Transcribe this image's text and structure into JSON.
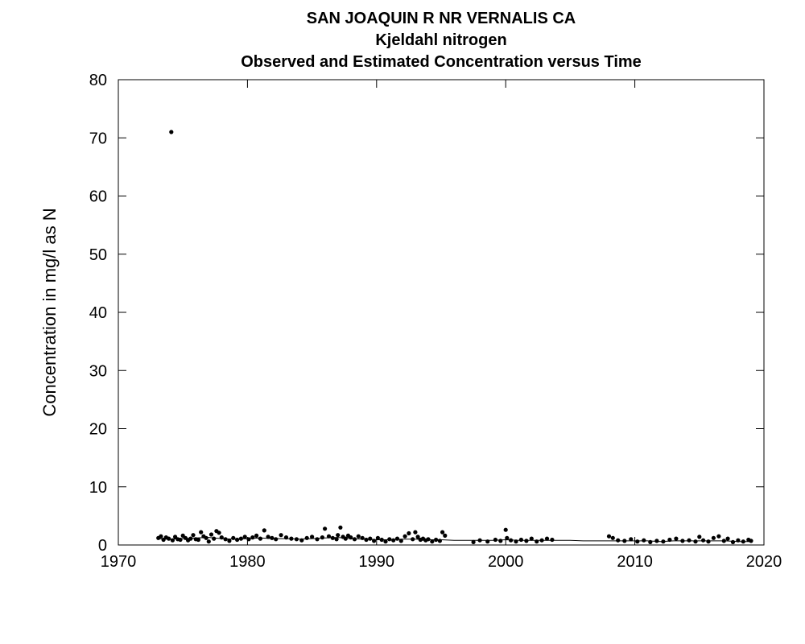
{
  "chart_data": {
    "type": "scatter",
    "title": "SAN JOAQUIN R NR VERNALIS CA",
    "subtitle": "Kjeldahl nitrogen",
    "subtitle2": "Observed and Estimated Concentration versus Time",
    "xlabel": "",
    "ylabel": "Concentration in mg/l as N",
    "xlim": [
      1970,
      2020
    ],
    "ylim": [
      0,
      80
    ],
    "x_ticks": [
      1970,
      1980,
      1990,
      2000,
      2010,
      2020
    ],
    "y_ticks": [
      0,
      10,
      20,
      30,
      40,
      50,
      60,
      70,
      80
    ],
    "grid": false,
    "series": [
      {
        "kind": "observed",
        "style": "points",
        "x": [
          1973.1,
          1973.3,
          1973.5,
          1973.7,
          1973.9,
          1974.1,
          1974.2,
          1974.4,
          1974.6,
          1974.8,
          1975.0,
          1975.2,
          1975.4,
          1975.6,
          1975.8,
          1976.0,
          1976.2,
          1976.4,
          1976.6,
          1976.8,
          1977.0,
          1977.2,
          1977.4,
          1977.6,
          1977.8,
          1978.0,
          1978.3,
          1978.6,
          1978.9,
          1979.2,
          1979.5,
          1979.8,
          1980.1,
          1980.4,
          1980.7,
          1981.0,
          1981.3,
          1981.6,
          1981.9,
          1982.2,
          1982.6,
          1983.0,
          1983.4,
          1983.8,
          1984.2,
          1984.6,
          1985.0,
          1985.4,
          1985.8,
          1986.0,
          1986.3,
          1986.6,
          1986.9,
          1987.0,
          1987.2,
          1987.4,
          1987.6,
          1987.8,
          1988.0,
          1988.3,
          1988.6,
          1988.9,
          1989.2,
          1989.5,
          1989.8,
          1990.1,
          1990.4,
          1990.7,
          1991.0,
          1991.3,
          1991.6,
          1991.9,
          1992.2,
          1992.5,
          1992.8,
          1993.0,
          1993.2,
          1993.4,
          1993.6,
          1993.8,
          1994.0,
          1994.3,
          1994.6,
          1994.9,
          1995.1,
          1995.3,
          1997.5,
          1998.0,
          1998.6,
          1999.2,
          1999.6,
          2000.0,
          2000.1,
          2000.4,
          2000.8,
          2001.2,
          2001.6,
          2002.0,
          2002.4,
          2002.8,
          2003.2,
          2003.6,
          2008.0,
          2008.3,
          2008.7,
          2009.2,
          2009.7,
          2010.2,
          2010.7,
          2011.2,
          2011.7,
          2012.2,
          2012.7,
          2013.2,
          2013.7,
          2014.2,
          2014.7,
          2015.0,
          2015.3,
          2015.7,
          2016.1,
          2016.5,
          2016.9,
          2017.2,
          2017.6,
          2018.0,
          2018.4,
          2018.8,
          2019.0
        ],
        "y": [
          1.2,
          1.5,
          0.9,
          1.3,
          1.1,
          71.0,
          0.8,
          1.4,
          1.0,
          0.9,
          1.6,
          1.2,
          0.8,
          1.1,
          1.7,
          1.0,
          0.9,
          2.2,
          1.5,
          1.2,
          0.6,
          1.8,
          1.1,
          2.4,
          2.1,
          1.3,
          1.0,
          0.7,
          1.2,
          0.9,
          1.1,
          1.4,
          1.0,
          1.3,
          1.6,
          1.1,
          2.5,
          1.4,
          1.2,
          1.0,
          1.7,
          1.3,
          1.1,
          1.0,
          0.8,
          1.2,
          1.4,
          1.0,
          1.3,
          2.8,
          1.5,
          1.2,
          1.0,
          1.7,
          3.0,
          1.4,
          1.1,
          1.6,
          1.3,
          1.0,
          1.5,
          1.2,
          0.9,
          1.1,
          0.7,
          1.2,
          0.9,
          0.6,
          1.0,
          0.8,
          1.1,
          0.7,
          1.5,
          2.0,
          1.0,
          2.2,
          1.4,
          0.9,
          1.1,
          0.8,
          1.0,
          0.6,
          0.9,
          0.7,
          2.2,
          1.6,
          0.5,
          0.8,
          0.6,
          0.9,
          0.7,
          2.6,
          1.2,
          0.8,
          0.6,
          0.9,
          0.7,
          1.1,
          0.6,
          0.8,
          1.1,
          0.9,
          1.5,
          1.2,
          0.8,
          0.7,
          1.0,
          0.6,
          0.8,
          0.5,
          0.7,
          0.6,
          0.9,
          1.1,
          0.7,
          0.8,
          0.6,
          1.4,
          0.8,
          0.6,
          1.2,
          1.5,
          0.7,
          1.1,
          0.5,
          0.8,
          0.6,
          0.9,
          0.7
        ]
      },
      {
        "kind": "estimated",
        "style": "line",
        "x": [
          1973,
          1974,
          1975,
          1976,
          1977,
          1978,
          1979,
          1980,
          1981,
          1982,
          1983,
          1984,
          1985,
          1986,
          1987,
          1988,
          1989,
          1990,
          1991,
          1992,
          1993,
          1994,
          1995,
          1996,
          1997,
          1998,
          1999,
          2000,
          2001,
          2002,
          2003,
          2004,
          2005,
          2006,
          2007,
          2008,
          2009,
          2010,
          2011,
          2012,
          2013,
          2014,
          2015,
          2016,
          2017,
          2018,
          2019
        ],
        "y": [
          1.1,
          1.0,
          1.1,
          1.2,
          1.3,
          1.1,
          1.0,
          1.1,
          1.2,
          1.1,
          1.1,
          1.0,
          1.1,
          1.2,
          1.3,
          1.1,
          1.0,
          0.9,
          0.9,
          1.0,
          1.0,
          0.9,
          0.9,
          0.8,
          0.8,
          0.8,
          0.8,
          0.9,
          0.8,
          0.8,
          0.8,
          0.8,
          0.8,
          0.7,
          0.7,
          0.7,
          0.7,
          0.7,
          0.7,
          0.6,
          0.7,
          0.7,
          0.7,
          0.7,
          0.7,
          0.6,
          0.6
        ]
      }
    ]
  }
}
